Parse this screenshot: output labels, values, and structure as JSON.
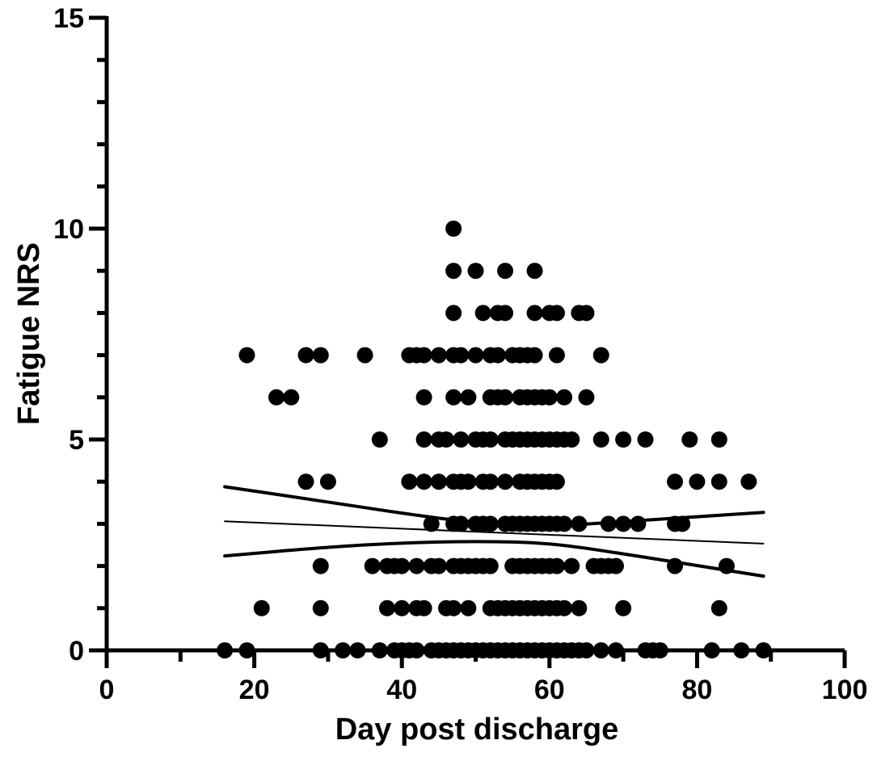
{
  "chart_data": {
    "type": "scatter",
    "title": "",
    "xlabel": "Day post discharge",
    "ylabel": "Fatigue NRS",
    "xlim": [
      0,
      100
    ],
    "ylim": [
      0,
      15
    ],
    "xticks": [
      0,
      20,
      40,
      60,
      80,
      100
    ],
    "yticks": [
      0,
      5,
      10,
      15
    ],
    "grid": false,
    "legend": "none",
    "marker_color": "#000000",
    "points": [
      [
        16,
        0
      ],
      [
        19,
        0
      ],
      [
        29,
        0
      ],
      [
        32,
        0
      ],
      [
        34,
        0
      ],
      [
        37,
        0
      ],
      [
        39,
        0
      ],
      [
        40,
        0
      ],
      [
        41,
        0
      ],
      [
        42,
        0
      ],
      [
        44,
        0
      ],
      [
        45,
        0
      ],
      [
        46,
        0
      ],
      [
        47,
        0
      ],
      [
        48,
        0
      ],
      [
        49,
        0
      ],
      [
        50,
        0
      ],
      [
        51,
        0
      ],
      [
        52,
        0
      ],
      [
        53,
        0
      ],
      [
        54,
        0
      ],
      [
        55,
        0
      ],
      [
        56,
        0
      ],
      [
        57,
        0
      ],
      [
        58,
        0
      ],
      [
        59,
        0
      ],
      [
        60,
        0
      ],
      [
        61,
        0
      ],
      [
        62,
        0
      ],
      [
        63,
        0
      ],
      [
        64,
        0
      ],
      [
        65,
        0
      ],
      [
        67,
        0
      ],
      [
        69,
        0
      ],
      [
        73,
        0
      ],
      [
        74,
        0
      ],
      [
        75,
        0
      ],
      [
        82,
        0
      ],
      [
        86,
        0
      ],
      [
        89,
        0
      ],
      [
        21,
        1
      ],
      [
        29,
        1
      ],
      [
        38,
        1
      ],
      [
        40,
        1
      ],
      [
        42,
        1
      ],
      [
        43,
        1
      ],
      [
        46,
        1
      ],
      [
        47,
        1
      ],
      [
        49,
        1
      ],
      [
        52,
        1
      ],
      [
        53,
        1
      ],
      [
        54,
        1
      ],
      [
        55,
        1
      ],
      [
        56,
        1
      ],
      [
        57,
        1
      ],
      [
        58,
        1
      ],
      [
        59,
        1
      ],
      [
        60,
        1
      ],
      [
        61,
        1
      ],
      [
        62,
        1
      ],
      [
        64,
        1
      ],
      [
        70,
        1
      ],
      [
        83,
        1
      ],
      [
        29,
        2
      ],
      [
        36,
        2
      ],
      [
        38,
        2
      ],
      [
        39,
        2
      ],
      [
        40,
        2
      ],
      [
        42,
        2
      ],
      [
        44,
        2
      ],
      [
        45,
        2
      ],
      [
        47,
        2
      ],
      [
        48,
        2
      ],
      [
        49,
        2
      ],
      [
        50,
        2
      ],
      [
        51,
        2
      ],
      [
        52,
        2
      ],
      [
        55,
        2
      ],
      [
        56,
        2
      ],
      [
        57,
        2
      ],
      [
        58,
        2
      ],
      [
        59,
        2
      ],
      [
        60,
        2
      ],
      [
        61,
        2
      ],
      [
        63,
        2
      ],
      [
        66,
        2
      ],
      [
        67,
        2
      ],
      [
        68,
        2
      ],
      [
        69,
        2
      ],
      [
        77,
        2
      ],
      [
        84,
        2
      ],
      [
        44,
        3
      ],
      [
        47,
        3
      ],
      [
        48,
        3
      ],
      [
        50,
        3
      ],
      [
        51,
        3
      ],
      [
        52,
        3
      ],
      [
        54,
        3
      ],
      [
        55,
        3
      ],
      [
        56,
        3
      ],
      [
        57,
        3
      ],
      [
        58,
        3
      ],
      [
        59,
        3
      ],
      [
        60,
        3
      ],
      [
        61,
        3
      ],
      [
        62,
        3
      ],
      [
        64,
        3
      ],
      [
        68,
        3
      ],
      [
        70,
        3
      ],
      [
        72,
        3
      ],
      [
        77,
        3
      ],
      [
        78,
        3
      ],
      [
        27,
        4
      ],
      [
        30,
        4
      ],
      [
        41,
        4
      ],
      [
        43,
        4
      ],
      [
        45,
        4
      ],
      [
        47,
        4
      ],
      [
        48,
        4
      ],
      [
        49,
        4
      ],
      [
        51,
        4
      ],
      [
        52,
        4
      ],
      [
        54,
        4
      ],
      [
        56,
        4
      ],
      [
        57,
        4
      ],
      [
        58,
        4
      ],
      [
        59,
        4
      ],
      [
        60,
        4
      ],
      [
        61,
        4
      ],
      [
        77,
        4
      ],
      [
        80,
        4
      ],
      [
        83,
        4
      ],
      [
        87,
        4
      ],
      [
        37,
        5
      ],
      [
        43,
        5
      ],
      [
        45,
        5
      ],
      [
        46,
        5
      ],
      [
        48,
        5
      ],
      [
        50,
        5
      ],
      [
        51,
        5
      ],
      [
        52,
        5
      ],
      [
        54,
        5
      ],
      [
        55,
        5
      ],
      [
        56,
        5
      ],
      [
        57,
        5
      ],
      [
        58,
        5
      ],
      [
        59,
        5
      ],
      [
        60,
        5
      ],
      [
        61,
        5
      ],
      [
        62,
        5
      ],
      [
        63,
        5
      ],
      [
        67,
        5
      ],
      [
        70,
        5
      ],
      [
        73,
        5
      ],
      [
        79,
        5
      ],
      [
        83,
        5
      ],
      [
        23,
        6
      ],
      [
        25,
        6
      ],
      [
        43,
        6
      ],
      [
        47,
        6
      ],
      [
        49,
        6
      ],
      [
        52,
        6
      ],
      [
        53,
        6
      ],
      [
        54,
        6
      ],
      [
        56,
        6
      ],
      [
        57,
        6
      ],
      [
        58,
        6
      ],
      [
        59,
        6
      ],
      [
        60,
        6
      ],
      [
        62,
        6
      ],
      [
        65,
        6
      ],
      [
        19,
        7
      ],
      [
        27,
        7
      ],
      [
        29,
        7
      ],
      [
        35,
        7
      ],
      [
        41,
        7
      ],
      [
        42,
        7
      ],
      [
        43,
        7
      ],
      [
        45,
        7
      ],
      [
        47,
        7
      ],
      [
        48,
        7
      ],
      [
        50,
        7
      ],
      [
        52,
        7
      ],
      [
        53,
        7
      ],
      [
        55,
        7
      ],
      [
        56,
        7
      ],
      [
        57,
        7
      ],
      [
        58,
        7
      ],
      [
        61,
        7
      ],
      [
        67,
        7
      ],
      [
        47,
        8
      ],
      [
        51,
        8
      ],
      [
        53,
        8
      ],
      [
        54,
        8
      ],
      [
        58,
        8
      ],
      [
        60,
        8
      ],
      [
        61,
        8
      ],
      [
        64,
        8
      ],
      [
        65,
        8
      ],
      [
        47,
        9
      ],
      [
        50,
        9
      ],
      [
        54,
        9
      ],
      [
        58,
        9
      ],
      [
        47,
        10
      ]
    ],
    "fit_lines": [
      {
        "name": "",
        "role": "regression",
        "x": [
          16,
          89
        ],
        "y": [
          3.06,
          2.53
        ]
      },
      {
        "name": "",
        "role": "upper-ci",
        "x": [
          16,
          30,
          40,
          50,
          60,
          70,
          80,
          89
        ],
        "y": [
          3.88,
          3.52,
          3.25,
          3.02,
          2.94,
          3.05,
          3.17,
          3.27
        ]
      },
      {
        "name": "",
        "role": "lower-ci",
        "x": [
          16,
          30,
          40,
          50,
          60,
          70,
          80,
          89
        ],
        "y": [
          2.24,
          2.45,
          2.55,
          2.59,
          2.55,
          2.29,
          2.01,
          1.76
        ]
      }
    ]
  }
}
